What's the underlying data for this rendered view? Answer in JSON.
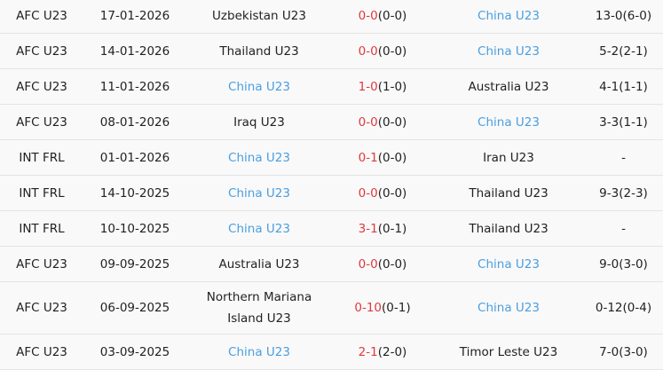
{
  "colors": {
    "highlight_team": "#4a9ee0",
    "score": "#e0393e"
  },
  "matches": [
    {
      "league": "AFC U23",
      "date": "17-01-2026",
      "home": "Uzbekistan U23",
      "home_fav": false,
      "score": "0-0",
      "ht": "(0-0)",
      "away": "China U23",
      "away_fav": true,
      "extra": "13-0(6-0)"
    },
    {
      "league": "AFC U23",
      "date": "14-01-2026",
      "home": "Thailand U23",
      "home_fav": false,
      "score": "0-0",
      "ht": "(0-0)",
      "away": "China U23",
      "away_fav": true,
      "extra": "5-2(2-1)"
    },
    {
      "league": "AFC U23",
      "date": "11-01-2026",
      "home": "China U23",
      "home_fav": true,
      "score": "1-0",
      "ht": "(1-0)",
      "away": "Australia U23",
      "away_fav": false,
      "extra": "4-1(1-1)"
    },
    {
      "league": "AFC U23",
      "date": "08-01-2026",
      "home": "Iraq U23",
      "home_fav": false,
      "score": "0-0",
      "ht": "(0-0)",
      "away": "China U23",
      "away_fav": true,
      "extra": "3-3(1-1)"
    },
    {
      "league": "INT FRL",
      "date": "01-01-2026",
      "home": "China U23",
      "home_fav": true,
      "score": "0-1",
      "ht": "(0-0)",
      "away": "Iran U23",
      "away_fav": false,
      "extra": "-"
    },
    {
      "league": "INT FRL",
      "date": "14-10-2025",
      "home": "China U23",
      "home_fav": true,
      "score": "0-0",
      "ht": "(0-0)",
      "away": "Thailand U23",
      "away_fav": false,
      "extra": "9-3(2-3)"
    },
    {
      "league": "INT FRL",
      "date": "10-10-2025",
      "home": "China U23",
      "home_fav": true,
      "score": "3-1",
      "ht": "(0-1)",
      "away": "Thailand U23",
      "away_fav": false,
      "extra": "-"
    },
    {
      "league": "AFC U23",
      "date": "09-09-2025",
      "home": "Australia U23",
      "home_fav": false,
      "score": "0-0",
      "ht": "(0-0)",
      "away": "China U23",
      "away_fav": true,
      "extra": "9-0(3-0)"
    },
    {
      "league": "AFC U23",
      "date": "06-09-2025",
      "home": "Northern Mariana Island U23",
      "home_fav": false,
      "score": "0-10",
      "ht": "(0-1)",
      "away": "China U23",
      "away_fav": true,
      "extra": "0-12(0-4)"
    },
    {
      "league": "AFC U23",
      "date": "03-09-2025",
      "home": "China U23",
      "home_fav": true,
      "score": "2-1",
      "ht": "(2-0)",
      "away": "Timor Leste U23",
      "away_fav": false,
      "extra": "7-0(3-0)"
    }
  ]
}
